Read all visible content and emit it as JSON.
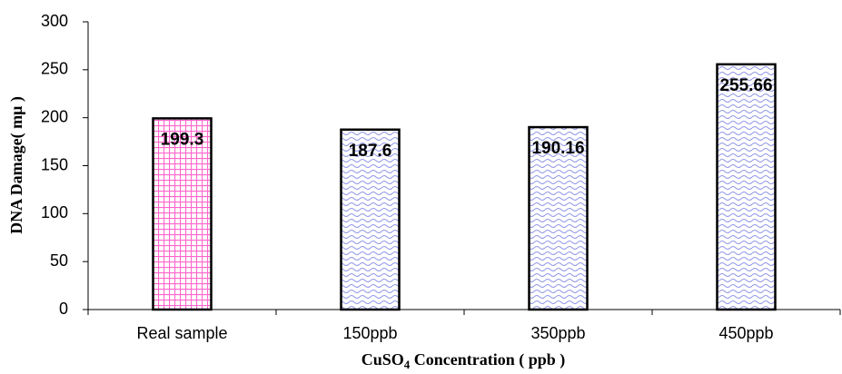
{
  "chart_data": {
    "type": "bar",
    "categories": [
      "Real sample",
      "150ppb",
      "350ppb",
      "450ppb"
    ],
    "values": [
      199.3,
      187.6,
      190.16,
      255.66
    ],
    "bar_styles": [
      {
        "pattern": "grid",
        "color": "#ff66cc"
      },
      {
        "pattern": "wave",
        "color": "#8f96e6"
      },
      {
        "pattern": "wave",
        "color": "#8f96e6"
      },
      {
        "pattern": "wave",
        "color": "#8f96e6"
      }
    ],
    "y_label": "DNA Damage( mμ )",
    "x_label": [
      "CuSO",
      "4",
      " Concentration ( ppb )"
    ],
    "ylim": [
      0,
      300
    ],
    "yticks": [
      0,
      50,
      100,
      150,
      200,
      250,
      300
    ],
    "grid": false
  }
}
